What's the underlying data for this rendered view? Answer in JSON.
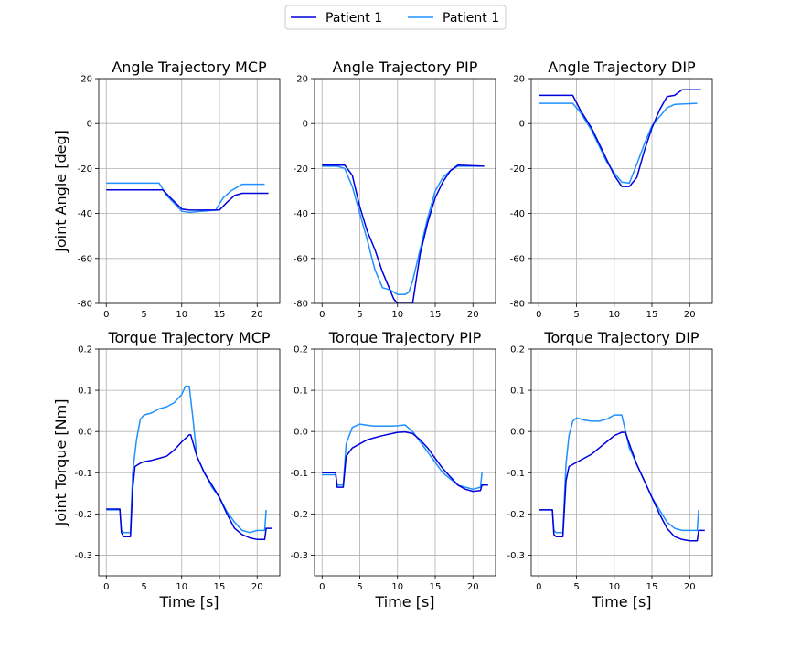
{
  "legend": [
    {
      "label": "Patient 1",
      "color": "#0000dd"
    },
    {
      "label": "Patient 1",
      "color": "#1e90ff"
    }
  ],
  "y_labels": {
    "angle": "Joint Angle [deg]",
    "torque": "Joint Torque [Nm]"
  },
  "x_label": "Time [s]",
  "chart_data": [
    {
      "type": "line",
      "title": "Angle Trajectory MCP",
      "xlabel": "",
      "ylabel": "Joint Angle [deg]",
      "xlim": [
        -1,
        23
      ],
      "ylim": [
        -80,
        20
      ],
      "xticks": [
        0,
        5,
        10,
        15,
        20
      ],
      "yticks": [
        20,
        0,
        -20,
        -40,
        -60,
        -80
      ],
      "series": [
        {
          "color": "#0000dd",
          "x": [
            0,
            7.5,
            8.5,
            10,
            11,
            15,
            16,
            17,
            18,
            21.5
          ],
          "y": [
            -29.5,
            -29.5,
            -33,
            -38,
            -38.5,
            -38.5,
            -35,
            -32,
            -31,
            -31
          ]
        },
        {
          "color": "#1e90ff",
          "x": [
            0,
            7,
            8,
            10,
            11,
            14.5,
            15.5,
            16.5,
            17.5,
            18,
            21
          ],
          "y": [
            -26.5,
            -26.5,
            -32,
            -39,
            -39.5,
            -38.5,
            -33,
            -30,
            -28,
            -27,
            -27
          ]
        }
      ]
    },
    {
      "type": "line",
      "title": "Angle Trajectory PIP",
      "xlabel": "",
      "ylabel": "",
      "xlim": [
        -1,
        23
      ],
      "ylim": [
        -80,
        20
      ],
      "xticks": [
        0,
        5,
        10,
        15,
        20
      ],
      "yticks": [
        20,
        0,
        -20,
        -40,
        -60,
        -80
      ],
      "series": [
        {
          "color": "#0000dd",
          "x": [
            0,
            3,
            4,
            5,
            6,
            7,
            8,
            9,
            9.5,
            10,
            11,
            12,
            13,
            14,
            15,
            16,
            17,
            18,
            21.5
          ],
          "y": [
            -18.5,
            -18.5,
            -23,
            -37,
            -48,
            -56,
            -66,
            -74,
            -78,
            -80,
            -80,
            -80,
            -58,
            -44,
            -33,
            -26,
            -21,
            -18.5,
            -19
          ]
        },
        {
          "color": "#1e90ff",
          "x": [
            0,
            2,
            3,
            4,
            5,
            6,
            7,
            8,
            9,
            10,
            11,
            11.5,
            12,
            13,
            14,
            15,
            16,
            17,
            18,
            21
          ],
          "y": [
            -19,
            -19,
            -20,
            -28,
            -40,
            -52,
            -65,
            -73,
            -74,
            -76,
            -76,
            -75,
            -70,
            -56,
            -42,
            -30,
            -24,
            -21,
            -19,
            -19
          ]
        }
      ]
    },
    {
      "type": "line",
      "title": "Angle Trajectory DIP",
      "xlabel": "",
      "ylabel": "",
      "xlim": [
        -1,
        23
      ],
      "ylim": [
        -80,
        20
      ],
      "xticks": [
        0,
        5,
        10,
        15,
        20
      ],
      "yticks": [
        20,
        0,
        -20,
        -40,
        -60,
        -80
      ],
      "series": [
        {
          "color": "#0000dd",
          "x": [
            0,
            4.5,
            5.5,
            7,
            8,
            9,
            10,
            11,
            12,
            13,
            14,
            15,
            16,
            17,
            18,
            19,
            21.5
          ],
          "y": [
            12.5,
            12.5,
            6,
            -2,
            -9,
            -16,
            -23,
            -28,
            -28,
            -24,
            -12,
            -2,
            6,
            12,
            12.5,
            15,
            15
          ]
        },
        {
          "color": "#1e90ff",
          "x": [
            0,
            4.5,
            5.5,
            7,
            8,
            9,
            10,
            11,
            12,
            13,
            14,
            15,
            16,
            17,
            18,
            21
          ],
          "y": [
            9,
            9,
            5,
            -3,
            -10,
            -17,
            -22,
            -26,
            -26.5,
            -18,
            -9,
            -1,
            3,
            7,
            8.5,
            9
          ]
        }
      ]
    },
    {
      "type": "line",
      "title": "Torque Trajectory MCP",
      "xlabel": "Time [s]",
      "ylabel": "Joint Torque [Nm]",
      "xlim": [
        -1,
        23
      ],
      "ylim": [
        -0.35,
        0.2
      ],
      "xticks": [
        0,
        5,
        10,
        15,
        20
      ],
      "yticks": [
        0.2,
        0.1,
        0.0,
        -0.1,
        -0.2,
        -0.3
      ],
      "series": [
        {
          "color": "#0000dd",
          "x": [
            0,
            1.8,
            2,
            2.3,
            3.2,
            3.5,
            3.8,
            4.5,
            5,
            6,
            7,
            8,
            9,
            10,
            11,
            11.2,
            12,
            13,
            14,
            15,
            16,
            17,
            18,
            19,
            20,
            21,
            21.2,
            22
          ],
          "y": [
            -0.188,
            -0.188,
            -0.245,
            -0.255,
            -0.255,
            -0.14,
            -0.085,
            -0.077,
            -0.073,
            -0.07,
            -0.065,
            -0.06,
            -0.045,
            -0.025,
            -0.008,
            -0.008,
            -0.06,
            -0.1,
            -0.13,
            -0.16,
            -0.2,
            -0.235,
            -0.25,
            -0.258,
            -0.262,
            -0.262,
            -0.235,
            -0.235
          ]
        },
        {
          "color": "#1e90ff",
          "x": [
            0,
            1.8,
            2,
            2.3,
            3.2,
            3.5,
            4,
            4.5,
            5,
            6,
            7,
            8,
            9,
            10,
            10.5,
            11,
            11.5,
            12,
            13,
            14,
            15,
            16,
            17,
            18,
            19,
            20,
            21,
            21.2
          ],
          "y": [
            -0.19,
            -0.19,
            -0.24,
            -0.245,
            -0.245,
            -0.1,
            -0.02,
            0.03,
            0.04,
            0.045,
            0.055,
            0.06,
            0.07,
            0.09,
            0.11,
            0.11,
            0.03,
            -0.06,
            -0.1,
            -0.135,
            -0.16,
            -0.195,
            -0.22,
            -0.24,
            -0.245,
            -0.24,
            -0.24,
            -0.19
          ]
        }
      ]
    },
    {
      "type": "line",
      "title": "Torque Trajectory PIP",
      "xlabel": "Time [s]",
      "ylabel": "",
      "xlim": [
        -1,
        23
      ],
      "ylim": [
        -0.35,
        0.2
      ],
      "xticks": [
        0,
        5,
        10,
        15,
        20
      ],
      "yticks": [
        0.2,
        0.1,
        0.0,
        -0.1,
        -0.2,
        -0.3
      ],
      "series": [
        {
          "color": "#0000dd",
          "x": [
            0,
            1.8,
            2,
            2.8,
            3.2,
            4,
            5,
            6,
            7,
            8,
            9,
            10,
            11,
            12,
            13,
            14,
            15,
            16,
            17,
            18,
            19,
            20,
            21,
            21.2,
            22
          ],
          "y": [
            -0.1,
            -0.1,
            -0.135,
            -0.135,
            -0.06,
            -0.04,
            -0.03,
            -0.02,
            -0.015,
            -0.01,
            -0.006,
            -0.002,
            -0.001,
            -0.005,
            -0.02,
            -0.04,
            -0.065,
            -0.09,
            -0.11,
            -0.13,
            -0.14,
            -0.145,
            -0.143,
            -0.13,
            -0.13
          ]
        },
        {
          "color": "#1e90ff",
          "x": [
            0,
            1.8,
            2,
            2.8,
            3.2,
            4,
            5,
            6,
            7,
            8,
            9,
            10,
            11,
            12,
            13,
            14,
            15,
            16,
            17,
            18,
            19,
            20,
            21,
            21.2
          ],
          "y": [
            -0.105,
            -0.105,
            -0.13,
            -0.13,
            -0.03,
            0.01,
            0.018,
            0.015,
            0.013,
            0.013,
            0.013,
            0.014,
            0.016,
            0.0,
            -0.025,
            -0.05,
            -0.075,
            -0.1,
            -0.115,
            -0.13,
            -0.135,
            -0.14,
            -0.135,
            -0.1
          ]
        }
      ]
    },
    {
      "type": "line",
      "title": "Torque Trajectory DIP",
      "xlabel": "Time [s]",
      "ylabel": "",
      "xlim": [
        -1,
        23
      ],
      "ylim": [
        -0.35,
        0.2
      ],
      "xticks": [
        0,
        5,
        10,
        15,
        20
      ],
      "yticks": [
        0.2,
        0.1,
        0.0,
        -0.1,
        -0.2,
        -0.3
      ],
      "series": [
        {
          "color": "#0000dd",
          "x": [
            0,
            1.8,
            2,
            2.3,
            3.2,
            3.6,
            4,
            5,
            6,
            7,
            8,
            9,
            10,
            11,
            11.5,
            12,
            13,
            14,
            15,
            16,
            17,
            18,
            19,
            20,
            21,
            21.2,
            22
          ],
          "y": [
            -0.19,
            -0.19,
            -0.25,
            -0.255,
            -0.255,
            -0.12,
            -0.085,
            -0.075,
            -0.065,
            -0.055,
            -0.04,
            -0.025,
            -0.01,
            -0.002,
            -0.002,
            -0.03,
            -0.08,
            -0.12,
            -0.16,
            -0.2,
            -0.235,
            -0.255,
            -0.262,
            -0.265,
            -0.265,
            -0.24,
            -0.24
          ]
        },
        {
          "color": "#1e90ff",
          "x": [
            0,
            1.8,
            2,
            2.3,
            3.2,
            3.6,
            4,
            4.5,
            5,
            6,
            7,
            8,
            9,
            10,
            11,
            11.5,
            12,
            13,
            14,
            15,
            16,
            17,
            18,
            19,
            20,
            21,
            21.2
          ],
          "y": [
            -0.19,
            -0.19,
            -0.24,
            -0.245,
            -0.245,
            -0.08,
            -0.01,
            0.025,
            0.033,
            0.028,
            0.025,
            0.025,
            0.03,
            0.04,
            0.04,
            0.0,
            -0.04,
            -0.08,
            -0.12,
            -0.16,
            -0.19,
            -0.22,
            -0.235,
            -0.24,
            -0.24,
            -0.24,
            -0.19
          ]
        }
      ]
    }
  ]
}
